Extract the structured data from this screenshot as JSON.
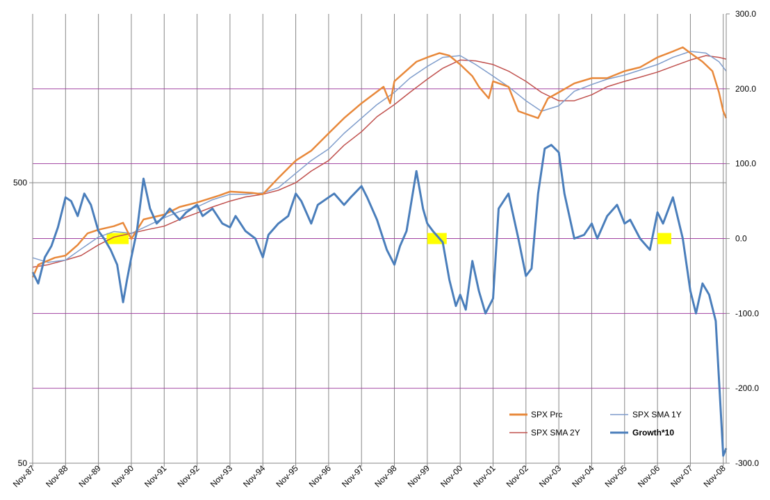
{
  "chart_data": {
    "type": "line",
    "x_tick_labels": [
      "Nov-87",
      "Nov-88",
      "Nov-89",
      "Nov-90",
      "Nov-91",
      "Nov-92",
      "Nov-93",
      "Nov-94",
      "Nov-95",
      "Nov-96",
      "Nov-97",
      "Nov-98",
      "Nov-99",
      "Nov-00",
      "Nov-01",
      "Nov-02",
      "Nov-03",
      "Nov-04",
      "Nov-05",
      "Nov-06",
      "Nov-07",
      "Nov-08"
    ],
    "xlim": [
      1987.83,
      2008.92
    ],
    "y_left": {
      "scale": "log",
      "ticks": [
        50,
        500
      ],
      "tick_labels": [
        "50",
        "500"
      ],
      "range": [
        50,
        2000
      ]
    },
    "y_right": {
      "scale": "linear",
      "ticks": [
        300,
        200,
        100,
        0,
        -100,
        -200,
        -300
      ],
      "tick_labels": [
        "300.0",
        "200.0",
        "100.0",
        "0.0",
        "-100.0",
        "-200.0",
        "-300.0"
      ],
      "range": [
        -300,
        300
      ]
    },
    "grid": {
      "vertical": true,
      "horizontal": "right-axis ticks"
    },
    "legend_position": "bottom-right",
    "legend": [
      {
        "label": "SPX Prc",
        "series": "spx_prc"
      },
      {
        "label": "SPX SMA 1Y",
        "series": "sma_1y"
      },
      {
        "label": "SPX SMA 2Y",
        "series": "sma_2y"
      },
      {
        "label": "Growth*10",
        "series": "growth"
      }
    ],
    "series": [
      {
        "id": "spx_prc",
        "name": "SPX Prc",
        "axis": "left",
        "color": "#e8883a",
        "points": [
          [
            1987.83,
            230
          ],
          [
            1988.0,
            255
          ],
          [
            1988.5,
            270
          ],
          [
            1988.83,
            275
          ],
          [
            1989.2,
            300
          ],
          [
            1989.5,
            330
          ],
          [
            1989.83,
            340
          ],
          [
            1990.3,
            350
          ],
          [
            1990.58,
            360
          ],
          [
            1990.83,
            315
          ],
          [
            1991.2,
            370
          ],
          [
            1991.83,
            385
          ],
          [
            1992.3,
            410
          ],
          [
            1992.83,
            425
          ],
          [
            1993.5,
            450
          ],
          [
            1993.83,
            465
          ],
          [
            1994.5,
            460
          ],
          [
            1994.83,
            455
          ],
          [
            1995.3,
            520
          ],
          [
            1995.83,
            600
          ],
          [
            1996.3,
            650
          ],
          [
            1996.83,
            750
          ],
          [
            1997.3,
            850
          ],
          [
            1997.83,
            960
          ],
          [
            1998.5,
            1100
          ],
          [
            1998.7,
            960
          ],
          [
            1998.83,
            1150
          ],
          [
            1999.5,
            1350
          ],
          [
            1999.83,
            1400
          ],
          [
            2000.2,
            1450
          ],
          [
            2000.5,
            1420
          ],
          [
            2000.83,
            1320
          ],
          [
            2001.2,
            1200
          ],
          [
            2001.4,
            1100
          ],
          [
            2001.7,
            1000
          ],
          [
            2001.83,
            1150
          ],
          [
            2002.3,
            1100
          ],
          [
            2002.6,
            900
          ],
          [
            2002.83,
            880
          ],
          [
            2003.2,
            850
          ],
          [
            2003.5,
            1000
          ],
          [
            2003.83,
            1050
          ],
          [
            2004.3,
            1130
          ],
          [
            2004.83,
            1180
          ],
          [
            2005.3,
            1180
          ],
          [
            2005.83,
            1250
          ],
          [
            2006.3,
            1290
          ],
          [
            2006.83,
            1400
          ],
          [
            2007.3,
            1470
          ],
          [
            2007.6,
            1520
          ],
          [
            2007.83,
            1450
          ],
          [
            2008.2,
            1350
          ],
          [
            2008.5,
            1250
          ],
          [
            2008.7,
            1050
          ],
          [
            2008.83,
            900
          ],
          [
            2008.92,
            850
          ]
        ]
      },
      {
        "id": "sma_1y",
        "name": "SPX SMA 1Y",
        "axis": "left",
        "color": "#7e9ccb",
        "points": [
          [
            1987.83,
            270
          ],
          [
            1988.3,
            260
          ],
          [
            1988.83,
            265
          ],
          [
            1989.3,
            290
          ],
          [
            1989.83,
            320
          ],
          [
            1990.3,
            335
          ],
          [
            1990.83,
            330
          ],
          [
            1991.3,
            350
          ],
          [
            1991.83,
            375
          ],
          [
            1992.3,
            395
          ],
          [
            1992.83,
            410
          ],
          [
            1993.3,
            435
          ],
          [
            1993.83,
            455
          ],
          [
            1994.3,
            455
          ],
          [
            1994.83,
            460
          ],
          [
            1995.3,
            480
          ],
          [
            1995.83,
            540
          ],
          [
            1996.3,
            600
          ],
          [
            1996.83,
            660
          ],
          [
            1997.3,
            750
          ],
          [
            1997.83,
            850
          ],
          [
            1998.3,
            950
          ],
          [
            1998.83,
            1050
          ],
          [
            1999.3,
            1180
          ],
          [
            1999.83,
            1300
          ],
          [
            2000.3,
            1400
          ],
          [
            2000.83,
            1420
          ],
          [
            2001.3,
            1320
          ],
          [
            2001.83,
            1200
          ],
          [
            2002.3,
            1100
          ],
          [
            2002.83,
            980
          ],
          [
            2003.3,
            900
          ],
          [
            2003.83,
            940
          ],
          [
            2004.3,
            1060
          ],
          [
            2004.83,
            1120
          ],
          [
            2005.3,
            1170
          ],
          [
            2005.83,
            1210
          ],
          [
            2006.3,
            1260
          ],
          [
            2006.83,
            1320
          ],
          [
            2007.3,
            1400
          ],
          [
            2007.83,
            1470
          ],
          [
            2008.3,
            1450
          ],
          [
            2008.7,
            1350
          ],
          [
            2008.92,
            1250
          ]
        ]
      },
      {
        "id": "sma_2y",
        "name": "SPX SMA 2Y",
        "axis": "left",
        "color": "#c0504d",
        "points": [
          [
            1987.83,
            250
          ],
          [
            1988.3,
            255
          ],
          [
            1988.83,
            265
          ],
          [
            1989.3,
            275
          ],
          [
            1989.83,
            300
          ],
          [
            1990.3,
            320
          ],
          [
            1990.83,
            330
          ],
          [
            1991.3,
            340
          ],
          [
            1991.83,
            350
          ],
          [
            1992.3,
            370
          ],
          [
            1992.83,
            390
          ],
          [
            1993.3,
            410
          ],
          [
            1993.83,
            430
          ],
          [
            1994.3,
            445
          ],
          [
            1994.83,
            455
          ],
          [
            1995.3,
            470
          ],
          [
            1995.83,
            500
          ],
          [
            1996.3,
            550
          ],
          [
            1996.83,
            600
          ],
          [
            1997.3,
            680
          ],
          [
            1997.83,
            760
          ],
          [
            1998.3,
            860
          ],
          [
            1998.83,
            950
          ],
          [
            1999.3,
            1050
          ],
          [
            1999.83,
            1170
          ],
          [
            2000.3,
            1280
          ],
          [
            2000.83,
            1370
          ],
          [
            2001.3,
            1360
          ],
          [
            2001.83,
            1320
          ],
          [
            2002.3,
            1250
          ],
          [
            2002.83,
            1150
          ],
          [
            2003.3,
            1050
          ],
          [
            2003.83,
            980
          ],
          [
            2004.3,
            980
          ],
          [
            2004.83,
            1030
          ],
          [
            2005.3,
            1100
          ],
          [
            2005.83,
            1150
          ],
          [
            2006.3,
            1190
          ],
          [
            2006.83,
            1240
          ],
          [
            2007.3,
            1300
          ],
          [
            2007.83,
            1370
          ],
          [
            2008.3,
            1420
          ],
          [
            2008.7,
            1400
          ],
          [
            2008.92,
            1380
          ]
        ]
      },
      {
        "id": "growth",
        "name": "Growth*10",
        "axis": "right",
        "color": "#4a7ebb",
        "points": [
          [
            1987.83,
            -45
          ],
          [
            1988.0,
            -60
          ],
          [
            1988.2,
            -25
          ],
          [
            1988.4,
            -10
          ],
          [
            1988.6,
            15
          ],
          [
            1988.83,
            55
          ],
          [
            1989.0,
            50
          ],
          [
            1989.2,
            30
          ],
          [
            1989.4,
            60
          ],
          [
            1989.6,
            45
          ],
          [
            1989.83,
            10
          ],
          [
            1990.0,
            0
          ],
          [
            1990.2,
            -15
          ],
          [
            1990.4,
            -35
          ],
          [
            1990.58,
            -85
          ],
          [
            1990.7,
            -55
          ],
          [
            1990.83,
            -25
          ],
          [
            1991.0,
            10
          ],
          [
            1991.2,
            80
          ],
          [
            1991.4,
            40
          ],
          [
            1991.6,
            20
          ],
          [
            1991.83,
            30
          ],
          [
            1992.0,
            40
          ],
          [
            1992.3,
            25
          ],
          [
            1992.5,
            35
          ],
          [
            1992.83,
            45
          ],
          [
            1993.0,
            30
          ],
          [
            1993.3,
            40
          ],
          [
            1993.6,
            20
          ],
          [
            1993.83,
            15
          ],
          [
            1994.0,
            30
          ],
          [
            1994.3,
            10
          ],
          [
            1994.6,
            0
          ],
          [
            1994.83,
            -25
          ],
          [
            1995.0,
            5
          ],
          [
            1995.3,
            20
          ],
          [
            1995.6,
            30
          ],
          [
            1995.83,
            60
          ],
          [
            1996.0,
            50
          ],
          [
            1996.3,
            20
          ],
          [
            1996.5,
            45
          ],
          [
            1996.83,
            55
          ],
          [
            1997.0,
            60
          ],
          [
            1997.3,
            45
          ],
          [
            1997.5,
            55
          ],
          [
            1997.83,
            70
          ],
          [
            1998.0,
            55
          ],
          [
            1998.3,
            25
          ],
          [
            1998.6,
            -15
          ],
          [
            1998.83,
            -35
          ],
          [
            1999.0,
            -10
          ],
          [
            1999.2,
            10
          ],
          [
            1999.5,
            90
          ],
          [
            1999.7,
            40
          ],
          [
            1999.83,
            20
          ],
          [
            2000.0,
            10
          ],
          [
            2000.3,
            -5
          ],
          [
            2000.5,
            -55
          ],
          [
            2000.7,
            -90
          ],
          [
            2000.83,
            -75
          ],
          [
            2001.0,
            -95
          ],
          [
            2001.2,
            -30
          ],
          [
            2001.4,
            -70
          ],
          [
            2001.6,
            -100
          ],
          [
            2001.83,
            -80
          ],
          [
            2002.0,
            40
          ],
          [
            2002.3,
            60
          ],
          [
            2002.6,
            0
          ],
          [
            2002.83,
            -50
          ],
          [
            2003.0,
            -40
          ],
          [
            2003.2,
            60
          ],
          [
            2003.4,
            120
          ],
          [
            2003.6,
            125
          ],
          [
            2003.83,
            115
          ],
          [
            2004.0,
            60
          ],
          [
            2004.3,
            0
          ],
          [
            2004.6,
            5
          ],
          [
            2004.83,
            20
          ],
          [
            2005.0,
            0
          ],
          [
            2005.3,
            30
          ],
          [
            2005.6,
            45
          ],
          [
            2005.83,
            20
          ],
          [
            2006.0,
            25
          ],
          [
            2006.3,
            0
          ],
          [
            2006.6,
            -15
          ],
          [
            2006.83,
            35
          ],
          [
            2007.0,
            20
          ],
          [
            2007.3,
            55
          ],
          [
            2007.6,
            0
          ],
          [
            2007.83,
            -70
          ],
          [
            2008.0,
            -100
          ],
          [
            2008.2,
            -60
          ],
          [
            2008.4,
            -75
          ],
          [
            2008.6,
            -110
          ],
          [
            2008.83,
            -290
          ],
          [
            2008.92,
            -280
          ]
        ]
      }
    ],
    "highlights": [
      {
        "x_start": 1990.08,
        "x_end": 1990.75,
        "y_value": 0,
        "color": "#ffff00"
      },
      {
        "x_start": 1999.83,
        "x_end": 2000.42,
        "y_value": 0,
        "color": "#ffff00"
      },
      {
        "x_start": 2006.83,
        "x_end": 2007.25,
        "y_value": 0,
        "color": "#ffff00"
      }
    ]
  }
}
